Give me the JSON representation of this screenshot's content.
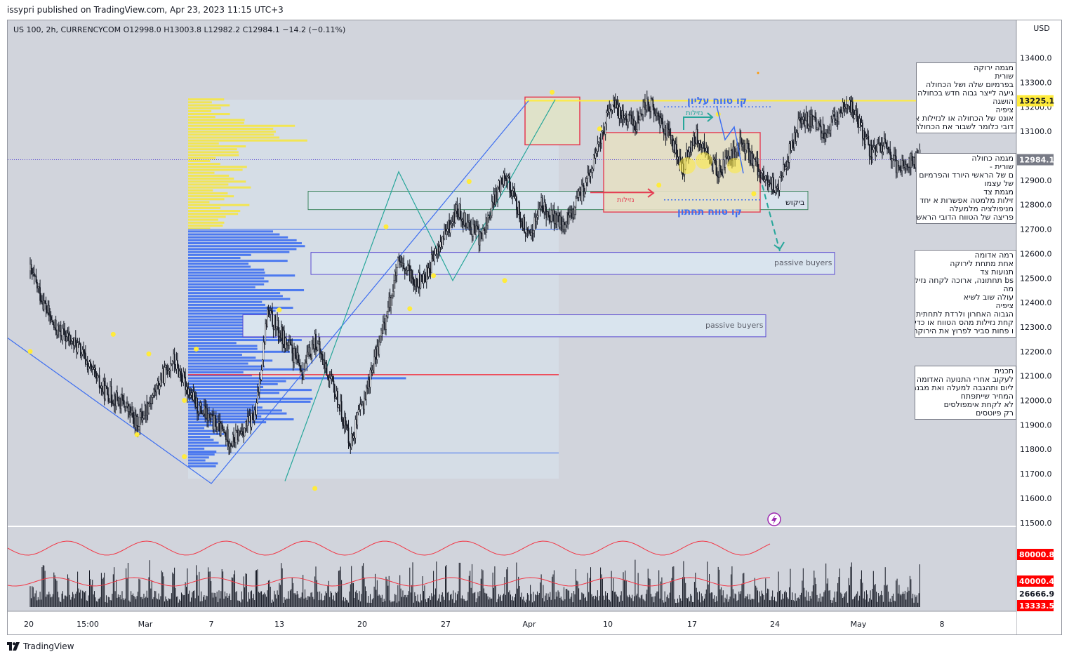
{
  "publish_info": "issypri published on TradingView.com, Apr 23, 2023 11:15 UTC+3",
  "symbol_line": "US 100, 2h, CURRENCYCOM  O12998.0  H13003.8  L12982.2  C12984.1  −14.2 (−0.11%)",
  "footer": {
    "brand": "TradingView",
    "logo_icon": "tradingview-logo-icon"
  },
  "colors": {
    "background": "#d1d4dc",
    "resistance": "#ffeb3b",
    "last_price": "#787b86",
    "volume_ma": "#f23645",
    "up_label": "#ff0000"
  },
  "chart_data": {
    "type": "candlestick",
    "currency": "USD",
    "price_axis": {
      "ticks": [
        13400,
        13300,
        13200,
        13100,
        12900,
        12800,
        12700,
        12600,
        12500,
        12400,
        12300,
        12200,
        12100,
        12000,
        11900,
        11800,
        11700,
        11600,
        11500
      ],
      "tick_labels": [
        "13400.0",
        "13300.0",
        "13200.0",
        "13100.0",
        "12900.0",
        "12800.0",
        "12700.0",
        "12600.0",
        "12500.0",
        "12400.0",
        "12300.0",
        "12200.0",
        "12100.0",
        "12000.0",
        "11900.0",
        "11800.0",
        "11700.0",
        "11600.0",
        "11500.0"
      ],
      "range": [
        11440,
        13570
      ]
    },
    "time_axis": {
      "labels": [
        "20",
        "15:00",
        "Mar",
        "7",
        "13",
        "20",
        "27",
        "Apr",
        "10",
        "17",
        "24",
        "May",
        "8"
      ]
    },
    "price_labels": [
      {
        "value": 13225.1,
        "text": "13225.1",
        "kind": "resistance"
      },
      {
        "value": 12984.1,
        "text": "12984.1",
        "kind": "last"
      }
    ],
    "volume_panel": {
      "labels": [
        {
          "text": "80000.8",
          "kind": "red"
        },
        {
          "text": "40000.4",
          "kind": "red"
        },
        {
          "text": "26666.9",
          "kind": "plain"
        },
        {
          "text": "13333.5",
          "kind": "red"
        }
      ]
    },
    "annotations": [
      {
        "text": "קו טווח עליון"
      },
      {
        "text": "קו טווח תחתון"
      },
      {
        "text": "ביקוש"
      },
      {
        "text": "passive buyers"
      },
      {
        "text": "passive buyers"
      },
      {
        "text": "נזילות"
      },
      {
        "text": "נזילות"
      }
    ],
    "notes": [
      {
        "lines": [
          "מגמה ירוקה",
          "שורית",
          "בפרמיום שלה ושל הכחולה",
          "גיעה לייצר גבוה חדש בכחולה",
          "הושגה",
          "ציפיה",
          "אונט של הכחולה או לנזילות או",
          "דובי כלומר לשבור את הכחולה"
        ]
      },
      {
        "lines": [
          "מגמה כחולה",
          "שורית -",
          "ם של הראשי היורד והפרמיום -",
          "של עצמו",
          "מגמת צד",
          "זילות מלמטה אפשרות א יחד עם",
          "מניפולציה מלמעלה",
          "פריצה של הטווח הדובי הראשי"
        ]
      },
      {
        "lines": [
          "רמה אדומה",
          "אחת מתחת לירוקה",
          "תנועות צד",
          "bs תחתונה, ארוכה לקחה נזילות",
          "מה",
          "עולה שוב לשיא",
          "ציפיה",
          "הגבוה האחרון ולרדת לתחתית",
          "קחת נזילות מהס הטווח או כדי",
          "ו פחות סביר לפרוץ את הירוקה"
        ]
      },
      {
        "lines": [
          "תכנית",
          "לעקוב אחרי התנועה האדומה",
          "ליום ותהגבה למעלה ואת מבנה",
          "המחיר שייתפתח",
          "לא לקחת אימפולסים",
          "רק פיוטסים"
        ]
      }
    ]
  }
}
